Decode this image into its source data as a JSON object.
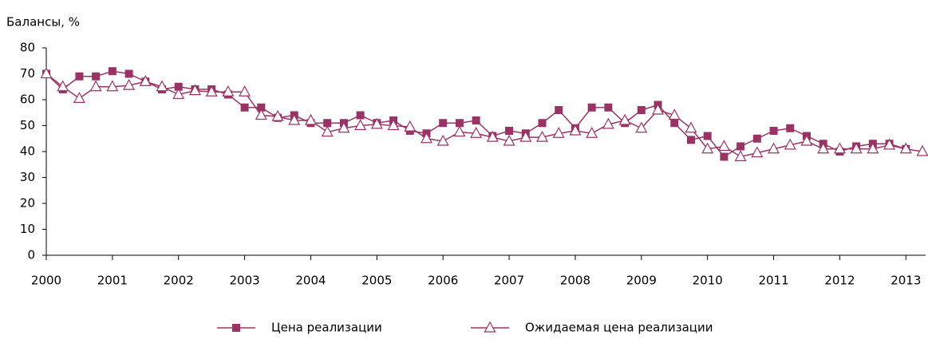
{
  "chart_data": {
    "type": "line",
    "y_label": "Балансы, %",
    "x": [
      2000,
      2000.25,
      2000.5,
      2000.75,
      2001,
      2001.25,
      2001.5,
      2001.75,
      2002,
      2002.25,
      2002.5,
      2002.75,
      2003,
      2003.25,
      2003.5,
      2003.75,
      2004,
      2004.25,
      2004.5,
      2004.75,
      2005,
      2005.25,
      2005.5,
      2005.75,
      2006,
      2006.25,
      2006.5,
      2006.75,
      2007,
      2007.25,
      2007.5,
      2007.75,
      2008,
      2008.25,
      2008.5,
      2008.75,
      2009,
      2009.25,
      2009.5,
      2009.75,
      2010,
      2010.25,
      2010.5,
      2010.75,
      2011,
      2011.25,
      2011.5,
      2011.75,
      2012,
      2012.25,
      2012.5,
      2012.75,
      2013,
      2013.25
    ],
    "series": [
      {
        "name": "Цена реализации",
        "color": "#993366",
        "marker": "square",
        "values": [
          70,
          64,
          69,
          69,
          71,
          70,
          67,
          64,
          65,
          64,
          64,
          62,
          57,
          57,
          53,
          54,
          51,
          51,
          51,
          54,
          51,
          52,
          48,
          47,
          51,
          51,
          52,
          46,
          48,
          47,
          51,
          56,
          49,
          57,
          57,
          51,
          56,
          58,
          51,
          44.5,
          46,
          38,
          42,
          45,
          48,
          49,
          46,
          43,
          40,
          42,
          43,
          43,
          41,
          null
        ]
      },
      {
        "name": "Ожидаемая цена реализации",
        "color": "#993366",
        "marker": "triangle",
        "values": [
          70,
          65,
          60.5,
          65,
          65,
          65.5,
          67,
          65,
          62,
          63.5,
          63,
          63,
          63,
          54,
          53.5,
          52,
          52,
          47.5,
          49,
          50,
          50.5,
          50,
          49.5,
          45,
          44,
          47.5,
          47,
          45.5,
          44,
          45.5,
          45.5,
          47,
          48,
          47,
          50.5,
          52,
          49,
          56,
          54,
          49,
          41,
          42,
          38,
          39.5,
          41,
          42.5,
          44,
          41,
          41,
          41,
          41,
          42.5,
          41,
          40
        ]
      }
    ],
    "xlim": [
      2000,
      2013.25
    ],
    "xticks": [
      2000,
      2001,
      2002,
      2003,
      2004,
      2005,
      2006,
      2007,
      2008,
      2009,
      2010,
      2011,
      2012,
      2013
    ],
    "ylim": [
      0,
      80
    ],
    "yticks": [
      0,
      10,
      20,
      30,
      40,
      50,
      60,
      70,
      80
    ],
    "grid": false,
    "legend": "bottom"
  }
}
